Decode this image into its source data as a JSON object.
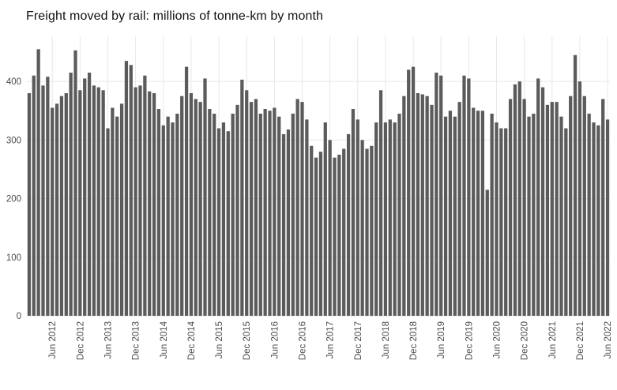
{
  "page": {
    "background": "#ffffff"
  },
  "chart_data": {
    "type": "bar",
    "title": "Freight moved by rail: millions of tonne-km by month",
    "xlabel": "",
    "ylabel": "",
    "legend": false,
    "grid": true,
    "bar_color": "#5b5b5b",
    "grid_color": "#e8e8e8",
    "axis_text_color": "#4d4d4d",
    "title_color": "#111111",
    "x_start_month": "Jan 2012",
    "x_end_month": "Jun 2022",
    "tick_every_months": 6,
    "first_tick_index": 5,
    "x_tick_labels": [
      "Jun 2012",
      "Dec 2012",
      "Jun 2013",
      "Dec 2013",
      "Jun 2014",
      "Dec 2014",
      "Jun 2015",
      "Dec 2015",
      "Jun 2016",
      "Dec 2016",
      "Jun 2017",
      "Dec 2017",
      "Jun 2018",
      "Dec 2018",
      "Jun 2019",
      "Dec 2019",
      "Jun 2020",
      "Dec 2020",
      "Jun 2021",
      "Dec 2021",
      "Jun 2022"
    ],
    "yticks": [
      0,
      100,
      200,
      300,
      400
    ],
    "ylim": [
      0,
      477
    ],
    "values": [
      380,
      410,
      455,
      393,
      408,
      355,
      362,
      375,
      380,
      415,
      453,
      385,
      405,
      415,
      393,
      390,
      385,
      320,
      355,
      340,
      362,
      435,
      428,
      390,
      393,
      410,
      383,
      380,
      353,
      325,
      340,
      330,
      345,
      375,
      425,
      380,
      370,
      365,
      405,
      353,
      345,
      320,
      330,
      315,
      345,
      360,
      403,
      385,
      365,
      370,
      345,
      353,
      350,
      355,
      340,
      310,
      318,
      345,
      370,
      365,
      335,
      290,
      270,
      280,
      330,
      300,
      270,
      275,
      285,
      310,
      353,
      335,
      300,
      285,
      290,
      330,
      385,
      330,
      335,
      330,
      345,
      375,
      420,
      425,
      380,
      378,
      375,
      360,
      415,
      410,
      340,
      350,
      340,
      365,
      410,
      405,
      355,
      350,
      350,
      215,
      345,
      330,
      320,
      320,
      370,
      395,
      400,
      370,
      340,
      345,
      405,
      390,
      360,
      365,
      365,
      340,
      320,
      375,
      445,
      400,
      375,
      345,
      330,
      325,
      370,
      335
    ]
  }
}
